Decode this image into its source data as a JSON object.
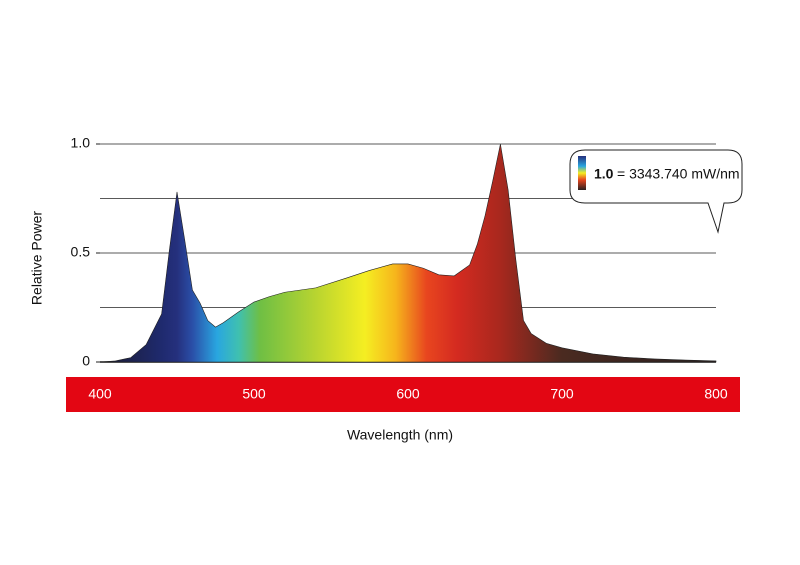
{
  "chart_data": {
    "type": "area",
    "xlabel": "Wavelength (nm)",
    "ylabel": "Relative Power",
    "annotation": {
      "bold": "1.0",
      "text": "= 3343.740 mW/nm"
    },
    "x": [
      400,
      410,
      420,
      430,
      435,
      440,
      445,
      450,
      455,
      460,
      465,
      470,
      475,
      480,
      490,
      500,
      510,
      520,
      540,
      560,
      575,
      590,
      600,
      610,
      620,
      630,
      640,
      645,
      650,
      655,
      660,
      665,
      670,
      675,
      680,
      690,
      700,
      720,
      740,
      760,
      780,
      800
    ],
    "values": [
      0,
      0.005,
      0.02,
      0.08,
      0.15,
      0.22,
      0.51,
      0.78,
      0.56,
      0.33,
      0.27,
      0.19,
      0.16,
      0.18,
      0.23,
      0.275,
      0.3,
      0.32,
      0.34,
      0.385,
      0.42,
      0.45,
      0.45,
      0.43,
      0.4,
      0.395,
      0.445,
      0.54,
      0.67,
      0.83,
      1.0,
      0.79,
      0.47,
      0.19,
      0.13,
      0.085,
      0.065,
      0.037,
      0.022,
      0.014,
      0.009,
      0.005
    ],
    "xlim": [
      400,
      800
    ],
    "xticks": [
      400,
      500,
      600,
      700,
      800
    ],
    "ylim": [
      0,
      1
    ],
    "yticks": [
      0,
      {
        "value": 0.5,
        "label": "0.5"
      },
      {
        "value": 1,
        "label": "1.0"
      }
    ],
    "gridlines": [
      0.25,
      0.5,
      0.75,
      1
    ],
    "band_color": "#e30613"
  }
}
